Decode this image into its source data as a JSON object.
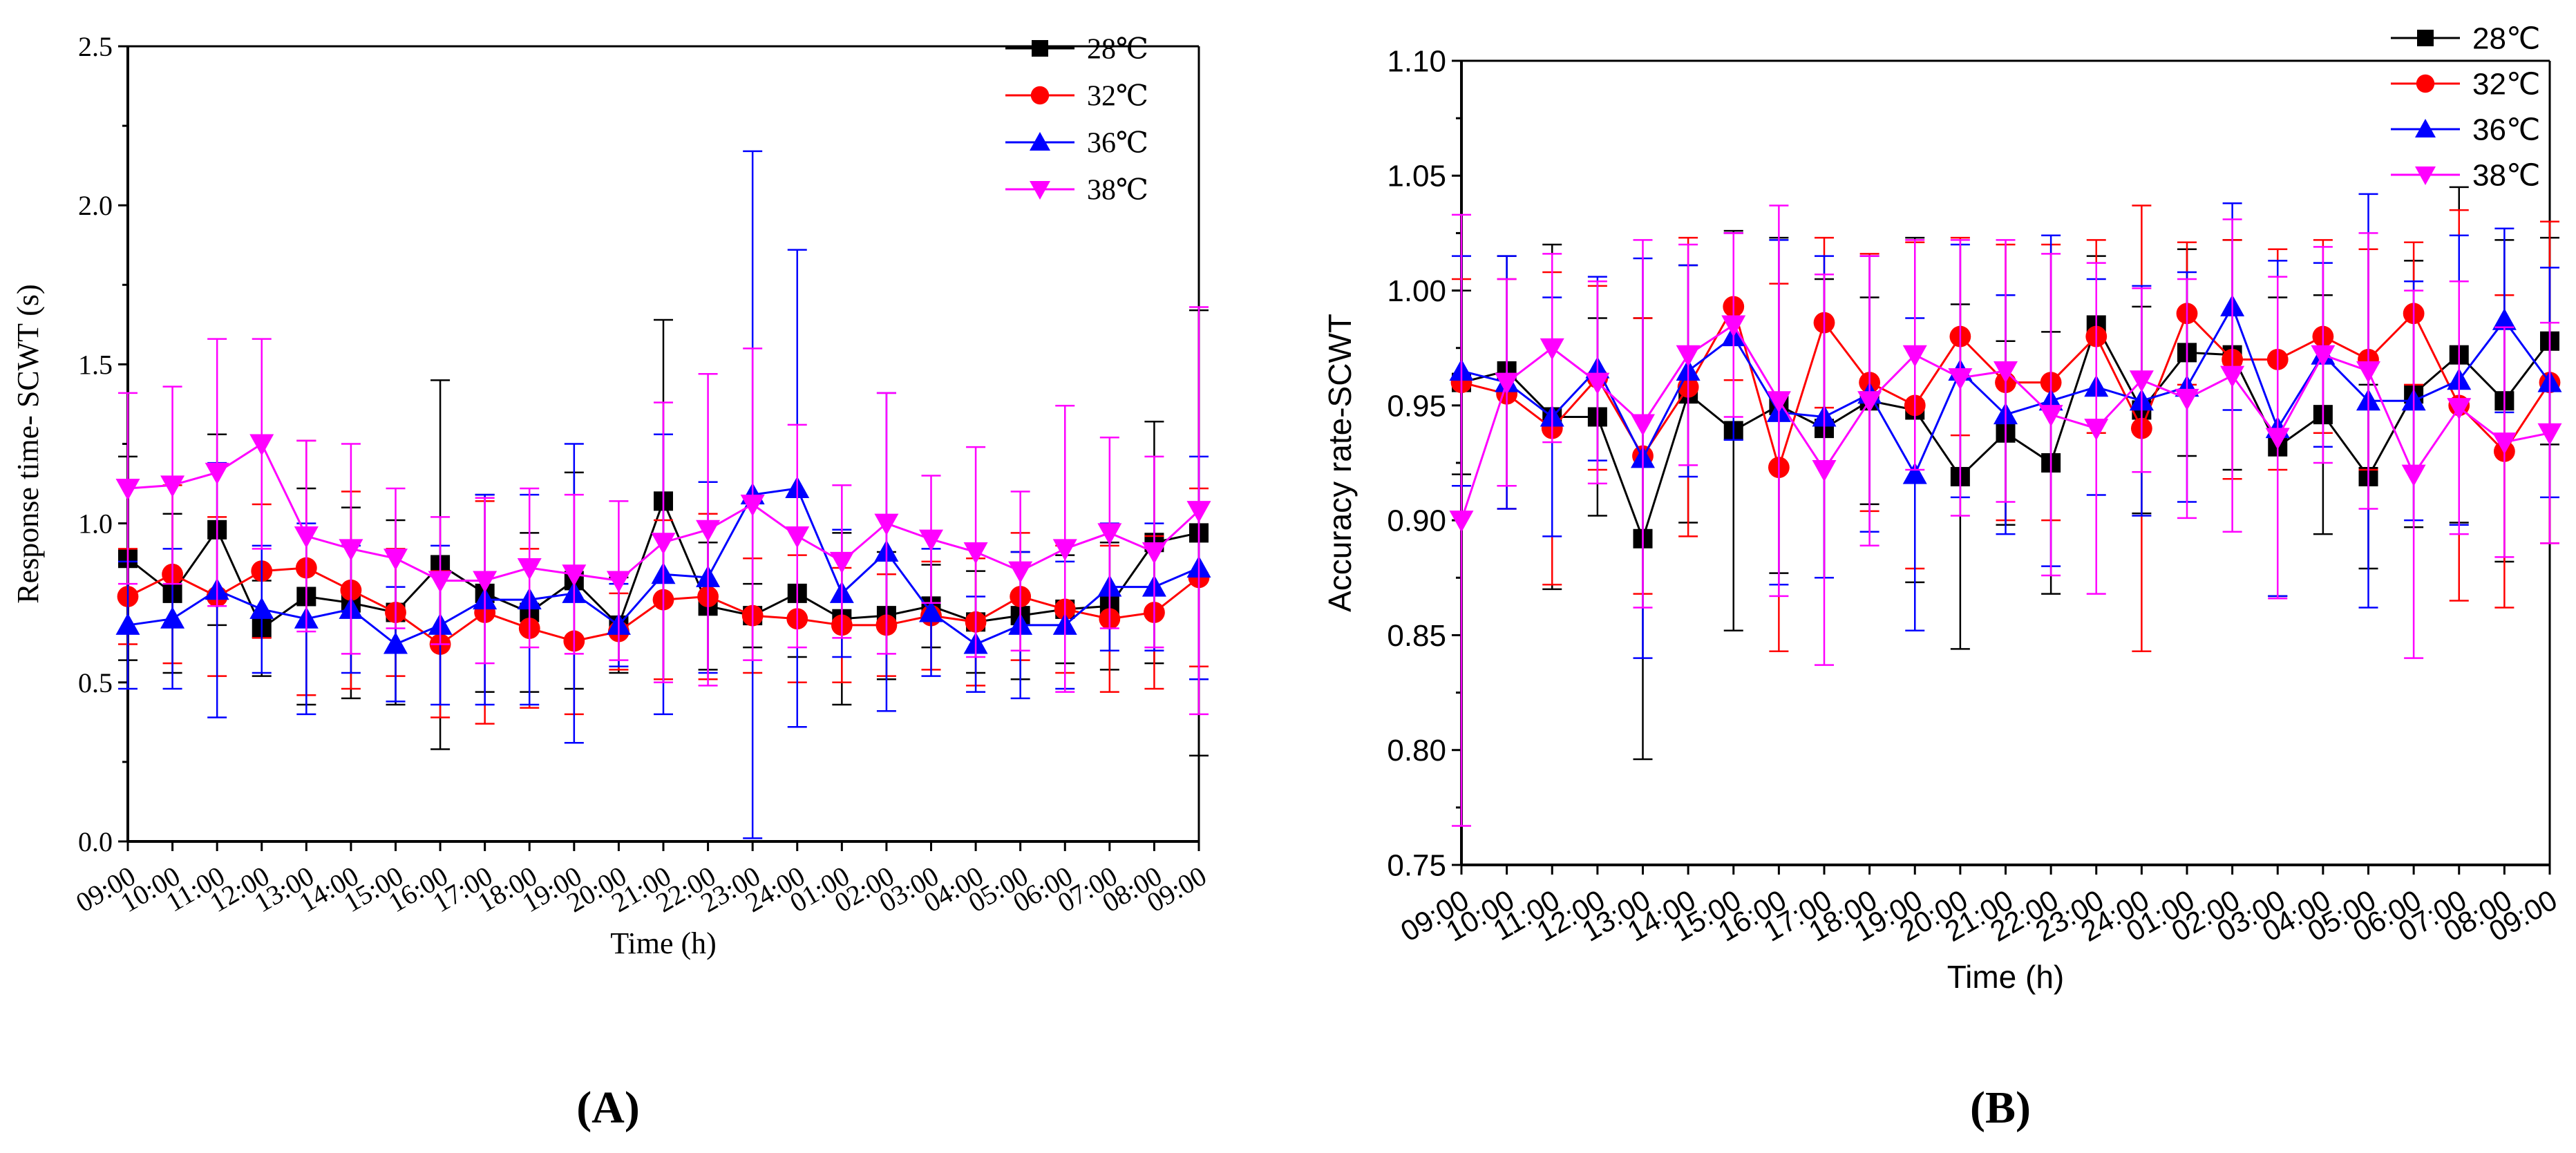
{
  "chart_data": [
    {
      "type": "line",
      "panel_label": "(A)",
      "xlabel": "Time (h)",
      "ylabel": "Response time- SCWT (s)",
      "ylim": [
        0,
        2.5
      ],
      "yticks": [
        "0.0",
        "0.5",
        "1.0",
        "1.5",
        "2.0",
        "2.5"
      ],
      "categories": [
        "09:00",
        "10:00",
        "11:00",
        "12:00",
        "13:00",
        "14:00",
        "15:00",
        "16:00",
        "17:00",
        "18:00",
        "19:00",
        "20:00",
        "21:00",
        "22:00",
        "23:00",
        "24:00",
        "01:00",
        "02:00",
        "03:00",
        "04:00",
        "05:00",
        "06:00",
        "07:00",
        "08:00",
        "09:00"
      ],
      "legend_position": "top-right",
      "series": [
        {
          "name": "28℃",
          "color": "#000000",
          "marker": "square",
          "values": [
            0.89,
            0.78,
            0.98,
            0.67,
            0.77,
            0.75,
            0.72,
            0.87,
            0.78,
            0.72,
            0.82,
            0.68,
            1.07,
            0.74,
            0.71,
            0.78,
            0.7,
            0.71,
            0.74,
            0.69,
            0.71,
            0.73,
            0.74,
            0.94,
            0.97
          ],
          "errors": [
            0.32,
            0.25,
            0.3,
            0.15,
            0.34,
            0.3,
            0.29,
            0.58,
            0.31,
            0.25,
            0.34,
            0.15,
            0.57,
            0.2,
            0.1,
            0.2,
            0.27,
            0.2,
            0.13,
            0.16,
            0.2,
            0.17,
            0.2,
            0.38,
            0.7
          ]
        },
        {
          "name": "32℃",
          "color": "#ff0000",
          "marker": "circle",
          "values": [
            0.77,
            0.84,
            0.77,
            0.85,
            0.86,
            0.79,
            0.72,
            0.62,
            0.72,
            0.67,
            0.63,
            0.66,
            0.76,
            0.77,
            0.71,
            0.7,
            0.68,
            0.68,
            0.71,
            0.69,
            0.77,
            0.73,
            0.7,
            0.72,
            0.83
          ],
          "errors": [
            0.15,
            0.28,
            0.25,
            0.21,
            0.4,
            0.31,
            0.2,
            0.23,
            0.35,
            0.25,
            0.23,
            0.12,
            0.25,
            0.26,
            0.18,
            0.2,
            0.18,
            0.16,
            0.17,
            0.2,
            0.2,
            0.2,
            0.23,
            0.24,
            0.28
          ]
        },
        {
          "name": "36℃",
          "color": "#0000ff",
          "marker": "triangle-up",
          "values": [
            0.68,
            0.7,
            0.79,
            0.73,
            0.7,
            0.73,
            0.62,
            0.68,
            0.76,
            0.76,
            0.78,
            0.68,
            0.84,
            0.83,
            1.09,
            1.11,
            0.78,
            0.91,
            0.72,
            0.62,
            0.68,
            0.68,
            0.8,
            0.8,
            0.86
          ],
          "errors": [
            0.2,
            0.22,
            0.4,
            0.2,
            0.3,
            0.2,
            0.18,
            0.25,
            0.33,
            0.33,
            0.47,
            0.13,
            0.44,
            0.3,
            1.08,
            0.75,
            0.2,
            0.5,
            0.2,
            0.15,
            0.23,
            0.2,
            0.2,
            0.2,
            0.35
          ]
        },
        {
          "name": "38℃",
          "color": "#ff00ff",
          "marker": "triangle-down",
          "values": [
            1.11,
            1.12,
            1.16,
            1.25,
            0.96,
            0.92,
            0.89,
            0.82,
            0.82,
            0.86,
            0.84,
            0.82,
            0.94,
            0.98,
            1.06,
            0.96,
            0.88,
            1.0,
            0.95,
            0.91,
            0.85,
            0.92,
            0.97,
            0.91,
            1.04
          ],
          "errors": [
            0.3,
            0.31,
            0.42,
            0.33,
            0.3,
            0.33,
            0.22,
            0.2,
            0.26,
            0.25,
            0.25,
            0.25,
            0.44,
            0.49,
            0.49,
            0.35,
            0.24,
            0.41,
            0.2,
            0.33,
            0.25,
            0.45,
            0.3,
            0.3,
            0.64
          ]
        }
      ]
    },
    {
      "type": "line",
      "panel_label": "(B)",
      "xlabel": "Time (h)",
      "ylabel": "Accuracy rate-SCWT",
      "ylim": [
        0.75,
        1.1
      ],
      "yticks": [
        "0.75",
        "0.80",
        "0.85",
        "0.90",
        "0.95",
        "1.00",
        "1.05",
        "1.10"
      ],
      "categories": [
        "09:00",
        "10:00",
        "11:00",
        "12:00",
        "13:00",
        "14:00",
        "15:00",
        "16:00",
        "17:00",
        "18:00",
        "19:00",
        "20:00",
        "21:00",
        "22:00",
        "23:00",
        "24:00",
        "01:00",
        "02:00",
        "03:00",
        "04:00",
        "05:00",
        "06:00",
        "07:00",
        "08:00",
        "09:00"
      ],
      "legend_position": "top-right",
      "series": [
        {
          "name": "28℃",
          "color": "#000000",
          "marker": "square",
          "values": [
            0.96,
            0.965,
            0.945,
            0.945,
            0.892,
            0.955,
            0.939,
            0.95,
            0.94,
            0.952,
            0.948,
            0.919,
            0.938,
            0.925,
            0.985,
            0.948,
            0.973,
            0.972,
            0.932,
            0.946,
            0.919,
            0.955,
            0.972,
            0.952,
            0.978
          ],
          "errors": [
            0.04,
            0.05,
            0.075,
            0.043,
            0.096,
            0.056,
            0.087,
            0.073,
            0.065,
            0.045,
            0.075,
            0.075,
            0.04,
            0.057,
            0.03,
            0.045,
            0.045,
            0.05,
            0.065,
            0.052,
            0.04,
            0.058,
            0.073,
            0.07,
            0.045
          ]
        },
        {
          "name": "32℃",
          "color": "#ff0000",
          "marker": "circle",
          "values": [
            0.96,
            0.955,
            0.94,
            0.962,
            0.928,
            0.958,
            0.993,
            0.923,
            0.986,
            0.96,
            0.95,
            0.98,
            0.96,
            0.96,
            0.98,
            0.94,
            0.99,
            0.97,
            0.97,
            0.98,
            0.97,
            0.99,
            0.95,
            0.93,
            0.96
          ],
          "errors": [
            0.045,
            0.05,
            0.068,
            0.04,
            0.06,
            0.065,
            0.032,
            0.08,
            0.037,
            0.056,
            0.071,
            0.043,
            0.06,
            0.06,
            0.042,
            0.097,
            0.031,
            0.052,
            0.048,
            0.042,
            0.048,
            0.031,
            0.085,
            0.068,
            0.07
          ]
        },
        {
          "name": "36℃",
          "color": "#0000ff",
          "marker": "triangle-up",
          "values": [
            0.965,
            0.96,
            0.945,
            0.966,
            0.927,
            0.965,
            0.98,
            0.947,
            0.945,
            0.955,
            0.92,
            0.965,
            0.946,
            0.952,
            0.958,
            0.952,
            0.958,
            0.993,
            0.94,
            0.972,
            0.952,
            0.952,
            0.961,
            0.987,
            0.96
          ],
          "errors": [
            0.05,
            0.055,
            0.052,
            0.04,
            0.087,
            0.046,
            0.045,
            0.075,
            0.07,
            0.06,
            0.068,
            0.055,
            0.052,
            0.072,
            0.047,
            0.05,
            0.05,
            0.045,
            0.073,
            0.04,
            0.09,
            0.052,
            0.063,
            0.04,
            0.05
          ]
        },
        {
          "name": "38℃",
          "color": "#ff00ff",
          "marker": "triangle-down",
          "values": [
            0.9,
            0.96,
            0.975,
            0.96,
            0.942,
            0.972,
            0.985,
            0.952,
            0.922,
            0.952,
            0.972,
            0.962,
            0.965,
            0.946,
            0.94,
            0.961,
            0.953,
            0.963,
            0.936,
            0.972,
            0.965,
            0.92,
            0.949,
            0.934,
            0.938
          ],
          "errors": [
            0.133,
            0.045,
            0.041,
            0.044,
            0.08,
            0.048,
            0.04,
            0.085,
            0.085,
            0.063,
            0.05,
            0.06,
            0.057,
            0.07,
            0.072,
            0.04,
            0.052,
            0.068,
            0.07,
            0.047,
            0.06,
            0.08,
            0.055,
            0.05,
            0.048
          ]
        }
      ]
    }
  ]
}
